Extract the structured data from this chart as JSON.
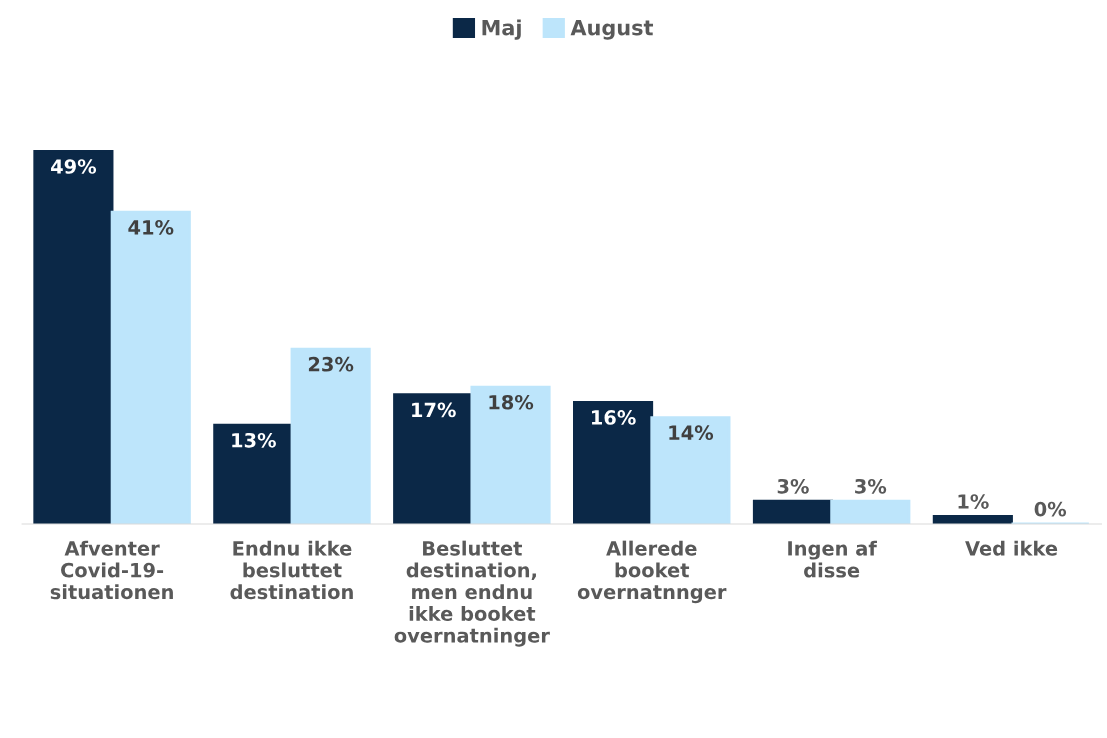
{
  "chart_data": {
    "type": "bar",
    "categories": [
      "Afventer Covid-19-situationen",
      "Endnu ikke besluttet destination",
      "Besluttet destination, men endnu ikke booket overnatninger",
      "Allerede booket overnatnnger",
      "Ingen af disse",
      "Ved ikke"
    ],
    "series": [
      {
        "name": "Maj",
        "color": "#0b2847",
        "values": [
          49,
          13,
          17,
          16,
          3,
          1
        ],
        "value_labels": [
          "49%",
          "13%",
          "17%",
          "16%",
          "3%",
          "1%"
        ]
      },
      {
        "name": "August",
        "color": "#bde5fb",
        "values": [
          41,
          23,
          18,
          14,
          3,
          0
        ],
        "value_labels": [
          "41%",
          "23%",
          "18%",
          "14%",
          "3%",
          "0%"
        ]
      }
    ],
    "legend": "top",
    "grid": false
  }
}
